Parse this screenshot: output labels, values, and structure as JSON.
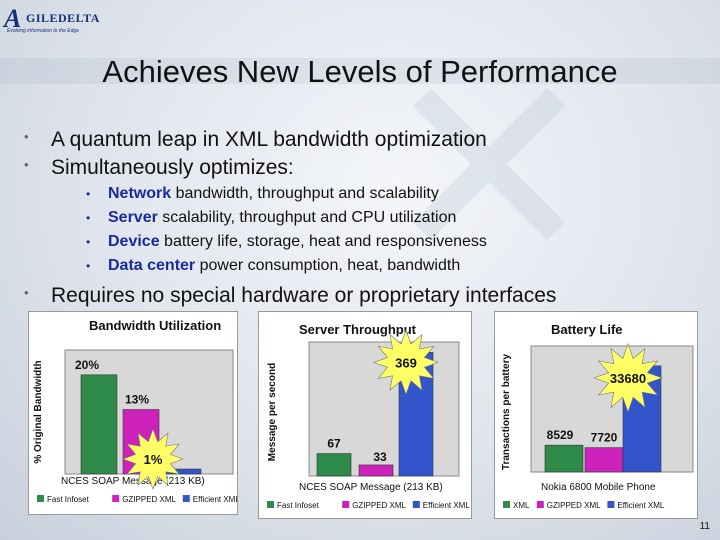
{
  "logo": {
    "mark": "A",
    "name": "GILEDELTA",
    "tagline": "Evolving information to the Edge"
  },
  "title": "Achieves New Levels of Performance",
  "bullets": [
    "A quantum leap in XML bandwidth optimization",
    "Simultaneously optimizes:"
  ],
  "sub_bullets": [
    {
      "key": "Network",
      "rest": " bandwidth, throughput and scalability"
    },
    {
      "key": "Server",
      "rest": " scalability, throughput and CPU utilization"
    },
    {
      "key": "Device",
      "rest": " battery life, storage, heat and responsiveness"
    },
    {
      "key": "Data center",
      "rest": " power consumption, heat, bandwidth"
    }
  ],
  "last_bullet": "Requires no special hardware or proprietary interfaces",
  "page_number": "11",
  "colors": {
    "fast_infoset": "#2e8b4a",
    "gzipped_xml": "#cc22bb",
    "efficient_xml": "#3355cc",
    "highlight": "#ffff66"
  },
  "chart_data": [
    {
      "type": "bar",
      "title": "Bandwidth Utilization",
      "ylabel": "% Original Bandwidth",
      "xlabel": "NCES SOAP Message (213 KB)",
      "ylim": [
        0,
        25
      ],
      "series": [
        {
          "name": "Fast Infoset",
          "values": [
            20
          ],
          "label": "20%"
        },
        {
          "name": "GZIPPED XML",
          "values": [
            13
          ],
          "label": "13%"
        },
        {
          "name": "Efficient XML",
          "values": [
            1
          ],
          "label": "1%"
        }
      ]
    },
    {
      "type": "bar",
      "title": "Server Throughput",
      "ylabel": "Message per second",
      "xlabel": "NCES SOAP Message (213 KB)",
      "ylim": [
        0,
        400
      ],
      "series": [
        {
          "name": "Fast Infoset",
          "values": [
            67
          ],
          "label": "67"
        },
        {
          "name": "GZIPPED XML",
          "values": [
            33
          ],
          "label": "33"
        },
        {
          "name": "Efficient XML",
          "values": [
            369
          ],
          "label": "369"
        }
      ]
    },
    {
      "type": "bar",
      "title": "Battery Life",
      "ylabel": "Transactions per battery",
      "xlabel": "Nokia 6800 Mobile Phone",
      "ylim": [
        0,
        40000
      ],
      "series": [
        {
          "name": "XML",
          "values": [
            8529
          ],
          "label": "8529"
        },
        {
          "name": "GZIPPED XML",
          "values": [
            7720
          ],
          "label": "7720"
        },
        {
          "name": "Efficient XML",
          "values": [
            33680
          ],
          "label": "33680"
        }
      ]
    }
  ]
}
